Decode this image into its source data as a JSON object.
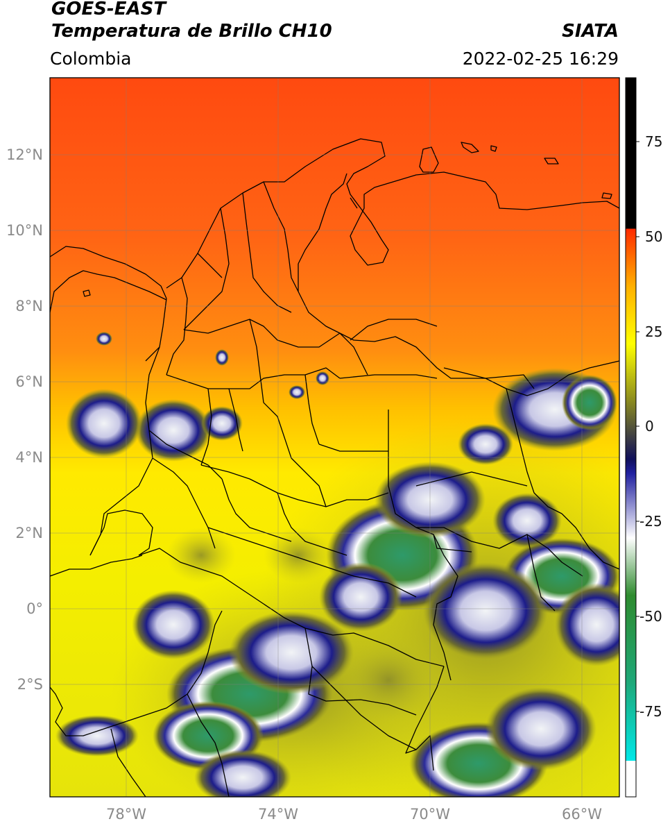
{
  "header": {
    "satellite": "GOES-EAST",
    "product": "Temperatura de Brillo CH10",
    "brand": "SIATA",
    "region": "Colombia",
    "timestamp": "2022-02-25 16:29"
  },
  "map": {
    "lon_range": [
      -80,
      -65
    ],
    "lat_range": [
      -5,
      14
    ],
    "lon_ticks": [
      "78°W",
      "74°W",
      "70°W",
      "66°W"
    ],
    "lat_ticks": [
      "12°N",
      "10°N",
      "8°N",
      "6°N",
      "4°N",
      "2°N",
      "0°",
      "2°S"
    ],
    "gridlines": true,
    "background_colors": {
      "warm_north": "#ff5a1a",
      "mid": "#ffb000",
      "neutral": "#f0f000",
      "cloud_tops_dark": "#1a1a7a",
      "cloud_tops_light": "#e6ecef",
      "coldest": "#2e8b57"
    }
  },
  "colorbar": {
    "ticks": [
      "75",
      "50",
      "25",
      "0",
      "-25",
      "-50",
      "-75"
    ],
    "range": [
      -95,
      90
    ],
    "unit_colors": [
      "#ffffff",
      "#00e5e5",
      "#2e8b57",
      "#ffffff",
      "#1a1a8a",
      "#707020",
      "#f0f000",
      "#ff8c00",
      "#ff2000",
      "#000000"
    ]
  }
}
